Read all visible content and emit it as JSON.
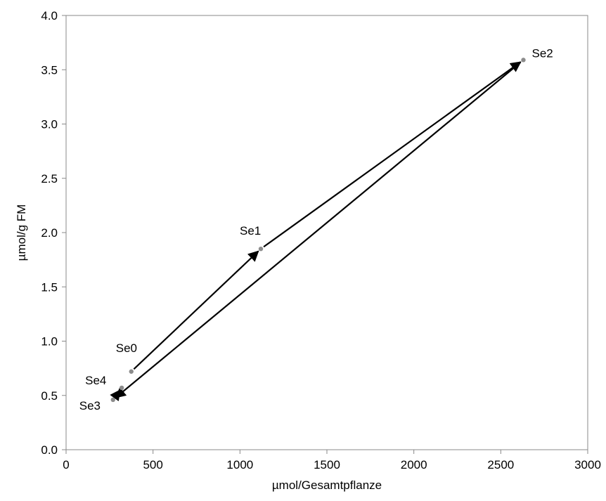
{
  "chart_data": {
    "type": "scatter",
    "title": "",
    "xlabel": "µmol/Gesamtpflanze",
    "ylabel": "µmol/g FM",
    "xlim": [
      0,
      3000
    ],
    "ylim": [
      0.0,
      4.0
    ],
    "xticks": [
      0,
      500,
      1000,
      1500,
      2000,
      2500,
      3000
    ],
    "xtick_labels": [
      "0",
      "500",
      "1000",
      "1500",
      "2000",
      "2500",
      "3000"
    ],
    "yticks": [
      0.0,
      0.5,
      1.0,
      1.5,
      2.0,
      2.5,
      3.0,
      3.5,
      4.0
    ],
    "ytick_labels": [
      "0.0",
      "0.5",
      "1.0",
      "1.5",
      "2.0",
      "2.5",
      "3.0",
      "3.5",
      "4.0"
    ],
    "grid": false,
    "legend": "none",
    "point_color": "#8c8c8c",
    "arrow_color": "#000000",
    "points": [
      {
        "label": "Se0",
        "x": 375,
        "y": 0.72
      },
      {
        "label": "Se1",
        "x": 1120,
        "y": 1.85
      },
      {
        "label": "Se2",
        "x": 2630,
        "y": 3.59
      },
      {
        "label": "Se3",
        "x": 270,
        "y": 0.46
      },
      {
        "label": "Se4",
        "x": 320,
        "y": 0.57
      }
    ],
    "arrows": [
      {
        "from": "Se0",
        "to": "Se1"
      },
      {
        "from": "Se1",
        "to": "Se2"
      },
      {
        "from": "Se2",
        "to": "Se3"
      },
      {
        "from": "Se3",
        "to": "Se4"
      }
    ]
  }
}
